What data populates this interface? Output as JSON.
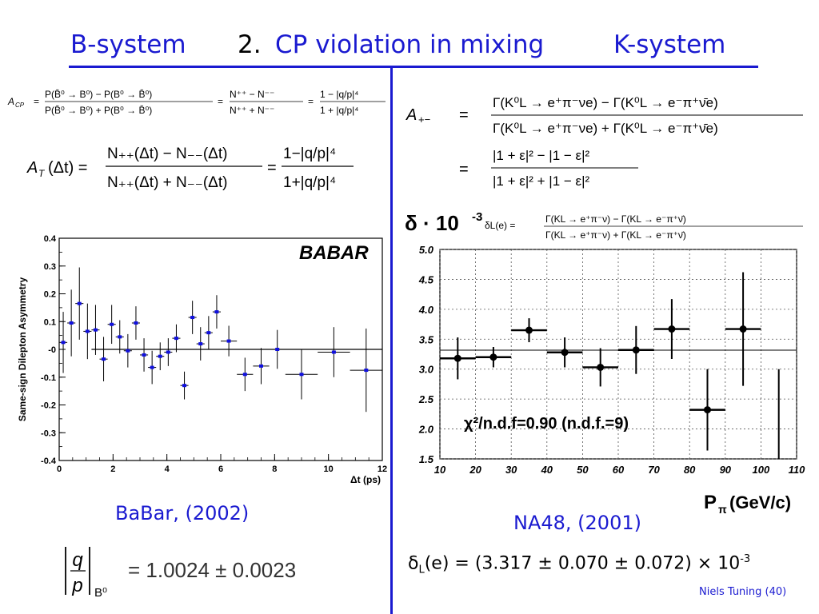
{
  "slide": {
    "title_left": "B-system",
    "title_number": "2.",
    "title_main": "CP violation in mixing",
    "title_right": "K-system",
    "footer": "Niels Tuning (40)"
  },
  "equations": {
    "acp_lhs": "A",
    "acp_lhs_sub": "CP",
    "acp_num": "P(B̄⁰ → B⁰) − P(B⁰ → B̄⁰)",
    "acp_den": "P(B̄⁰ → B⁰) + P(B⁰ → B̄⁰)",
    "acp_mid_num": "N⁺⁺ − N⁻⁻",
    "acp_mid_den": "N⁺⁺ + N⁻⁻",
    "acp_right_num": "1 − |q/p|⁴",
    "acp_right_den": "1 + |q/p|⁴",
    "at_lhs": "A",
    "at_lhs_sub": "T",
    "at_lhs_arg": "(Δt) =",
    "at_num": "N₊₊(Δt) − N₋₋(Δt)",
    "at_den": "N₊₊(Δt) + N₋₋(Δt)",
    "at_right_num": "1−|q/p|⁴",
    "at_right_den": "1+|q/p|⁴",
    "apm_lhs": "A",
    "apm_lhs_sub": "+−",
    "apm_num": "Γ(K⁰L → e⁺π⁻νe) − Γ(K⁰L → e⁻π⁺ν̄e)",
    "apm_den": "Γ(K⁰L → e⁺π⁻νe) + Γ(K⁰L → e⁻π⁺ν̄e)",
    "apm2_num": "|1 + ε|² − |1 − ε|²",
    "apm2_den": "|1 + ε|² + |1 − ε|²",
    "qp_value": "= 1.0024 ± 0.0023",
    "qp_sub": "B⁰"
  },
  "captions": {
    "babar": "BaBar, (2002)",
    "na48": "NA48, (2001)",
    "delta_result": "(e) = (3.317 ± 0.070 ± 0.072) × 10",
    "delta_symbol": "δ",
    "delta_sub": "L",
    "delta_exp": "-3"
  },
  "chart_data": [
    {
      "type": "scatter",
      "title": "",
      "logo": "BABAR",
      "xlabel": "Δt (ps)",
      "ylabel": "Same-sign Dilepton  Asymmetry",
      "xlim": [
        0,
        12
      ],
      "ylim": [
        -0.4,
        0.4
      ],
      "xticks": [
        "0",
        "2",
        "4",
        "6",
        "8",
        "10",
        "12"
      ],
      "yticks": [
        "0.4",
        "0.3",
        "0.2",
        "0.1",
        "-0",
        "-0.1",
        "-0.2",
        "-0.3",
        "-0.4"
      ],
      "fit_value": 0.0,
      "color": "#1010e0",
      "points": [
        {
          "x": 0.15,
          "y": 0.025,
          "xerr": 0.15,
          "yerr": 0.11
        },
        {
          "x": 0.45,
          "y": 0.095,
          "xerr": 0.15,
          "yerr": 0.12
        },
        {
          "x": 0.75,
          "y": 0.165,
          "xerr": 0.15,
          "yerr": 0.13
        },
        {
          "x": 1.05,
          "y": 0.065,
          "xerr": 0.15,
          "yerr": 0.1
        },
        {
          "x": 1.35,
          "y": 0.07,
          "xerr": 0.15,
          "yerr": 0.09
        },
        {
          "x": 1.65,
          "y": -0.035,
          "xerr": 0.15,
          "yerr": 0.08
        },
        {
          "x": 1.95,
          "y": 0.09,
          "xerr": 0.15,
          "yerr": 0.07
        },
        {
          "x": 2.25,
          "y": 0.045,
          "xerr": 0.15,
          "yerr": 0.06
        },
        {
          "x": 2.55,
          "y": -0.005,
          "xerr": 0.15,
          "yerr": 0.06
        },
        {
          "x": 2.85,
          "y": 0.095,
          "xerr": 0.15,
          "yerr": 0.06
        },
        {
          "x": 3.15,
          "y": -0.02,
          "xerr": 0.15,
          "yerr": 0.06
        },
        {
          "x": 3.45,
          "y": -0.065,
          "xerr": 0.15,
          "yerr": 0.06
        },
        {
          "x": 3.75,
          "y": -0.025,
          "xerr": 0.15,
          "yerr": 0.05
        },
        {
          "x": 4.05,
          "y": -0.01,
          "xerr": 0.15,
          "yerr": 0.05
        },
        {
          "x": 4.35,
          "y": 0.04,
          "xerr": 0.15,
          "yerr": 0.05
        },
        {
          "x": 4.65,
          "y": -0.13,
          "xerr": 0.15,
          "yerr": 0.05
        },
        {
          "x": 4.95,
          "y": 0.115,
          "xerr": 0.15,
          "yerr": 0.06
        },
        {
          "x": 5.25,
          "y": 0.02,
          "xerr": 0.15,
          "yerr": 0.06
        },
        {
          "x": 5.55,
          "y": 0.06,
          "xerr": 0.15,
          "yerr": 0.06
        },
        {
          "x": 5.85,
          "y": 0.135,
          "xerr": 0.15,
          "yerr": 0.06
        },
        {
          "x": 6.3,
          "y": 0.03,
          "xerr": 0.3,
          "yerr": 0.055
        },
        {
          "x": 6.9,
          "y": -0.09,
          "xerr": 0.3,
          "yerr": 0.06
        },
        {
          "x": 7.5,
          "y": -0.06,
          "xerr": 0.3,
          "yerr": 0.065
        },
        {
          "x": 8.1,
          "y": 0.0,
          "xerr": 0.6,
          "yerr": 0.07
        },
        {
          "x": 9.0,
          "y": -0.09,
          "xerr": 0.6,
          "yerr": 0.09
        },
        {
          "x": 10.2,
          "y": -0.01,
          "xerr": 0.6,
          "yerr": 0.09
        },
        {
          "x": 11.4,
          "y": -0.075,
          "xerr": 0.6,
          "yerr": 0.15
        }
      ]
    },
    {
      "type": "scatter",
      "title": "",
      "ylabel_symbol": "δ · 10",
      "ylabel_exp": "-3",
      "xlabel_symbol": "P",
      "xlabel_sub": "π",
      "xlabel_unit": "(GeV/c)",
      "inset_formula_lhs": "δL(e) =",
      "inset_formula_num": "Γ(KL → e⁺π⁻ν) − Γ(KL → e⁻π⁺ν̄)",
      "inset_formula_den": "Γ(KL → e⁺π⁻ν) + Γ(KL → e⁻π⁺ν̄)",
      "annotation": "χ²/n.d.f=0.90  (n.d.f.=9)",
      "xlim": [
        10,
        110
      ],
      "ylim": [
        1.5,
        5.0
      ],
      "xticks": [
        "10",
        "20",
        "30",
        "40",
        "50",
        "60",
        "70",
        "80",
        "90",
        "100",
        "110"
      ],
      "yticks": [
        "5.0",
        "4.5",
        "4.0",
        "3.5",
        "3.0",
        "2.5",
        "2.0",
        "1.5"
      ],
      "grid": true,
      "fit_value": 3.317,
      "points": [
        {
          "x": 15,
          "y": 3.18,
          "xerr": 5,
          "yerr": 0.35
        },
        {
          "x": 25,
          "y": 3.2,
          "xerr": 5,
          "yerr": 0.17
        },
        {
          "x": 35,
          "y": 3.65,
          "xerr": 5,
          "yerr": 0.2
        },
        {
          "x": 45,
          "y": 3.28,
          "xerr": 5,
          "yerr": 0.25
        },
        {
          "x": 55,
          "y": 3.03,
          "xerr": 5,
          "yerr": 0.32
        },
        {
          "x": 65,
          "y": 3.32,
          "xerr": 5,
          "yerr": 0.4
        },
        {
          "x": 75,
          "y": 3.67,
          "xerr": 5,
          "yerr": 0.5
        },
        {
          "x": 85,
          "y": 2.32,
          "xerr": 5,
          "yerr": 0.68
        },
        {
          "x": 95,
          "y": 3.67,
          "xerr": 5,
          "yerr": 0.95
        },
        {
          "x": 105,
          "y": 1.5,
          "xerr": 0,
          "yerr": 1.5
        }
      ]
    }
  ]
}
